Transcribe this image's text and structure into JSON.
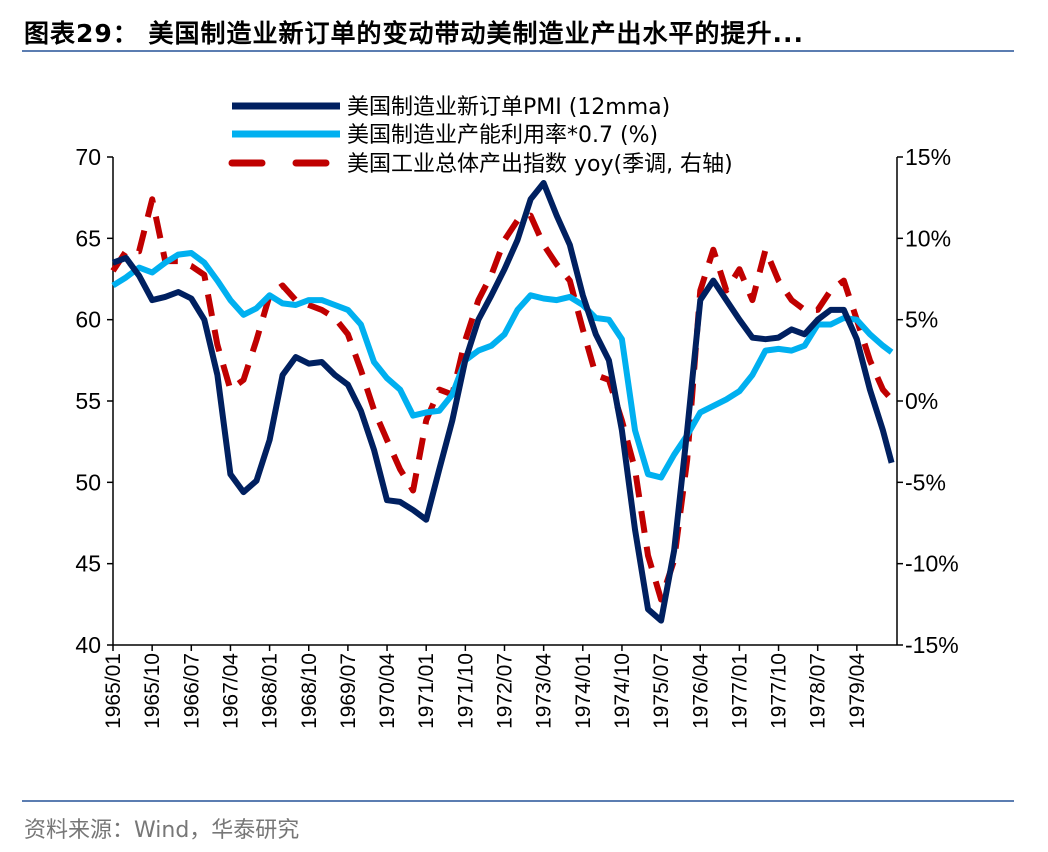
{
  "title": "图表29： 美国制造业新订单的变动带动美制造业产出水平的提升...",
  "source": "资料来源：Wind，华泰研究",
  "chart_data": {
    "type": "line",
    "title": "图表29： 美国制造业新订单的变动带动美制造业产出水平的提升...",
    "x_tick_labels": [
      "1965/01",
      "1965/10",
      "1966/07",
      "1967/04",
      "1968/01",
      "1968/10",
      "1969/07",
      "1970/04",
      "1971/01",
      "1971/10",
      "1972/07",
      "1973/04",
      "1974/01",
      "1974/10",
      "1975/07",
      "1976/04",
      "1977/01",
      "1977/10",
      "1978/07",
      "1979/04"
    ],
    "left_axis": {
      "range": [
        40,
        70
      ],
      "ticks": [
        "70",
        "65",
        "60",
        "55",
        "50",
        "45",
        "40"
      ]
    },
    "right_axis": {
      "range": [
        -15,
        15
      ],
      "ticks": [
        "15%",
        "10%",
        "5%",
        "0%",
        "-5%",
        "-10%",
        "-15%"
      ]
    },
    "grid": false,
    "legend_position": "top",
    "x": [
      "1965/01",
      "1965/04",
      "1965/07",
      "1965/10",
      "1966/01",
      "1966/04",
      "1966/07",
      "1966/10",
      "1967/01",
      "1967/04",
      "1967/07",
      "1967/10",
      "1968/01",
      "1968/04",
      "1968/07",
      "1968/10",
      "1969/01",
      "1969/04",
      "1969/07",
      "1969/10",
      "1970/01",
      "1970/04",
      "1970/07",
      "1970/10",
      "1971/01",
      "1971/04",
      "1971/07",
      "1971/10",
      "1972/01",
      "1972/04",
      "1972/07",
      "1972/10",
      "1973/01",
      "1973/04",
      "1973/07",
      "1973/10",
      "1974/01",
      "1974/04",
      "1974/07",
      "1974/10",
      "1975/01",
      "1975/04",
      "1975/07",
      "1975/10",
      "1976/01",
      "1976/04",
      "1976/07",
      "1976/10",
      "1977/01",
      "1977/04",
      "1977/07",
      "1977/10",
      "1978/01",
      "1978/04",
      "1978/07",
      "1978/10",
      "1979/01",
      "1979/04",
      "1979/07",
      "1979/10",
      "1979/12"
    ],
    "series": [
      {
        "name": "美国制造业新订单PMI (12mma)",
        "axis": "left",
        "color": "#002060",
        "style": "solid",
        "values": [
          63.5,
          63.8,
          62.7,
          61.2,
          61.4,
          61.7,
          61.3,
          60.0,
          56.6,
          50.5,
          49.4,
          50.1,
          52.6,
          56.6,
          57.7,
          57.3,
          57.4,
          56.6,
          56.0,
          54.4,
          52.0,
          48.9,
          48.8,
          48.3,
          47.7,
          50.8,
          53.8,
          57.5,
          60.0,
          61.5,
          63.1,
          64.9,
          67.4,
          68.4,
          66.4,
          64.6,
          61.5,
          59.1,
          57.5,
          53.2,
          47.1,
          42.2,
          41.5,
          45.8,
          53.2,
          61.2,
          62.4,
          61.2,
          60.0,
          58.9,
          58.8,
          58.9,
          59.4,
          59.1,
          60.0,
          60.6,
          60.6,
          58.8,
          55.7,
          53.2,
          51.2
        ]
      },
      {
        "name": "美国制造业产能利用率*0.7 (%)",
        "axis": "left",
        "color": "#00B0F0",
        "style": "solid",
        "values": [
          62.1,
          62.6,
          63.2,
          62.9,
          63.5,
          64.0,
          64.1,
          63.5,
          62.4,
          61.2,
          60.3,
          60.7,
          61.5,
          61.0,
          60.9,
          61.2,
          61.2,
          60.9,
          60.6,
          59.7,
          57.4,
          56.4,
          55.7,
          54.1,
          54.3,
          54.4,
          55.4,
          57.5,
          58.1,
          58.4,
          59.1,
          60.6,
          61.5,
          61.3,
          61.2,
          61.4,
          60.9,
          60.1,
          60.0,
          58.8,
          53.2,
          50.5,
          50.3,
          51.7,
          52.9,
          54.3,
          54.7,
          55.1,
          55.6,
          56.6,
          58.1,
          58.2,
          58.1,
          58.4,
          59.7,
          59.7,
          60.1,
          60.0,
          59.1,
          58.4,
          58.0
        ]
      },
      {
        "name": "美国工业总体产出指数 yoy(季调, 右轴)",
        "axis": "right",
        "color": "#C00000",
        "style": "dashed",
        "values": [
          8.0,
          9.2,
          9.2,
          12.4,
          8.6,
          8.6,
          8.3,
          7.75,
          3.45,
          0.7,
          1.3,
          3.75,
          6.5,
          7.1,
          6.2,
          5.9,
          5.6,
          5.1,
          4.1,
          1.9,
          -0.55,
          -2.4,
          -4.2,
          -5.5,
          -1.2,
          0.7,
          0.4,
          3.75,
          6.2,
          7.75,
          9.9,
          11.1,
          11.4,
          9.6,
          8.4,
          7.4,
          4.4,
          1.6,
          1.3,
          -1.2,
          -4.2,
          -9.5,
          -12.2,
          -9.8,
          -3.6,
          6.8,
          9.3,
          6.8,
          8.1,
          6.2,
          9.3,
          7.4,
          6.2,
          5.6,
          5.6,
          6.8,
          7.4,
          5.0,
          2.5,
          0.7,
          0.1
        ]
      }
    ]
  }
}
